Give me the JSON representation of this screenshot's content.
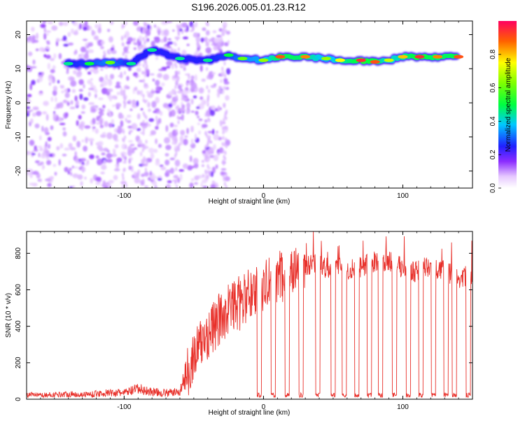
{
  "title": "S196.2026.005.01.23.R12",
  "chart_data": [
    {
      "type": "heatmap",
      "xlabel": "Height of straight line (km)",
      "ylabel": "Frequency (Hz)",
      "xlim": [
        -170,
        150
      ],
      "ylim": [
        -25,
        24
      ],
      "xticks": [
        -100,
        0,
        100
      ],
      "xtick_labels": [
        "-100",
        "0",
        "100"
      ],
      "yticks": [
        -20,
        -10,
        0,
        10,
        20
      ],
      "ytick_labels": [
        "-20",
        "-10",
        "0",
        "10",
        "20"
      ],
      "colorbar": {
        "label": "Normalized spectral amplitude",
        "range": [
          0,
          1
        ],
        "ticks": [
          0,
          0.2,
          0.4,
          0.6,
          0.8
        ],
        "tick_labels": [
          "0.0",
          "0.2",
          "0.4",
          "0.6",
          "0.8"
        ]
      },
      "ridge": [
        {
          "x": -140,
          "y": 11.5,
          "amp": 0.45
        },
        {
          "x": -125,
          "y": 11.5,
          "amp": 0.5
        },
        {
          "x": -110,
          "y": 11.8,
          "amp": 0.6
        },
        {
          "x": -95,
          "y": 11.5,
          "amp": 0.45
        },
        {
          "x": -80,
          "y": 15.5,
          "amp": 0.45
        },
        {
          "x": -60,
          "y": 13,
          "amp": 0.45
        },
        {
          "x": -40,
          "y": 12.5,
          "amp": 0.45
        },
        {
          "x": -25,
          "y": 14,
          "amp": 0.5
        },
        {
          "x": -15,
          "y": 13,
          "amp": 0.6
        },
        {
          "x": 0,
          "y": 12.5,
          "amp": 0.65
        },
        {
          "x": 12,
          "y": 13.5,
          "amp": 0.9
        },
        {
          "x": 30,
          "y": 13.5,
          "amp": 0.85
        },
        {
          "x": 45,
          "y": 13,
          "amp": 0.65
        },
        {
          "x": 55,
          "y": 12.5,
          "amp": 0.75
        },
        {
          "x": 70,
          "y": 12.5,
          "amp": 0.95
        },
        {
          "x": 80,
          "y": 12,
          "amp": 0.9
        },
        {
          "x": 90,
          "y": 12.5,
          "amp": 0.7
        },
        {
          "x": 100,
          "y": 13.5,
          "amp": 0.8
        },
        {
          "x": 112,
          "y": 13.5,
          "amp": 0.95
        },
        {
          "x": 125,
          "y": 13.5,
          "amp": 0.85
        },
        {
          "x": 140,
          "y": 13.5,
          "amp": 0.9
        }
      ]
    },
    {
      "type": "line",
      "xlabel": "Height of straight line (km)",
      "ylabel": "SNR (10 * v/v)",
      "xlim": [
        -170,
        150
      ],
      "ylim": [
        0,
        920
      ],
      "xticks": [
        -100,
        0,
        100
      ],
      "xtick_labels": [
        "-100",
        "0",
        "100"
      ],
      "yticks": [
        0,
        200,
        400,
        600,
        800
      ],
      "ytick_labels": [
        "0",
        "200",
        "400",
        "600",
        "800"
      ],
      "color": "#e8302a",
      "series": [
        {
          "name": "SNR",
          "x": [
            -170,
            -160,
            -150,
            -140,
            -130,
            -120,
            -110,
            -100,
            -90,
            -80,
            -70,
            -60,
            -55,
            -50,
            -45,
            -40,
            -35,
            -30,
            -25,
            -20,
            -15,
            -10,
            -5,
            0,
            5,
            10,
            15,
            20,
            25,
            30,
            35,
            40,
            45,
            50,
            55,
            60,
            70,
            80,
            90,
            100,
            110,
            120,
            130,
            140,
            150
          ],
          "y": [
            25,
            22,
            25,
            28,
            25,
            30,
            35,
            35,
            55,
            40,
            35,
            40,
            150,
            230,
            300,
            360,
            400,
            450,
            500,
            520,
            530,
            580,
            600,
            620,
            650,
            660,
            690,
            700,
            720,
            740,
            730,
            760,
            720,
            730,
            740,
            710,
            720,
            760,
            760,
            720,
            700,
            730,
            700,
            660,
            680
          ]
        }
      ],
      "dropouts_x": [
        -3,
        7,
        17,
        27,
        39,
        50,
        58,
        67,
        76,
        84,
        94,
        104,
        113,
        122,
        131,
        137,
        147
      ]
    }
  ]
}
